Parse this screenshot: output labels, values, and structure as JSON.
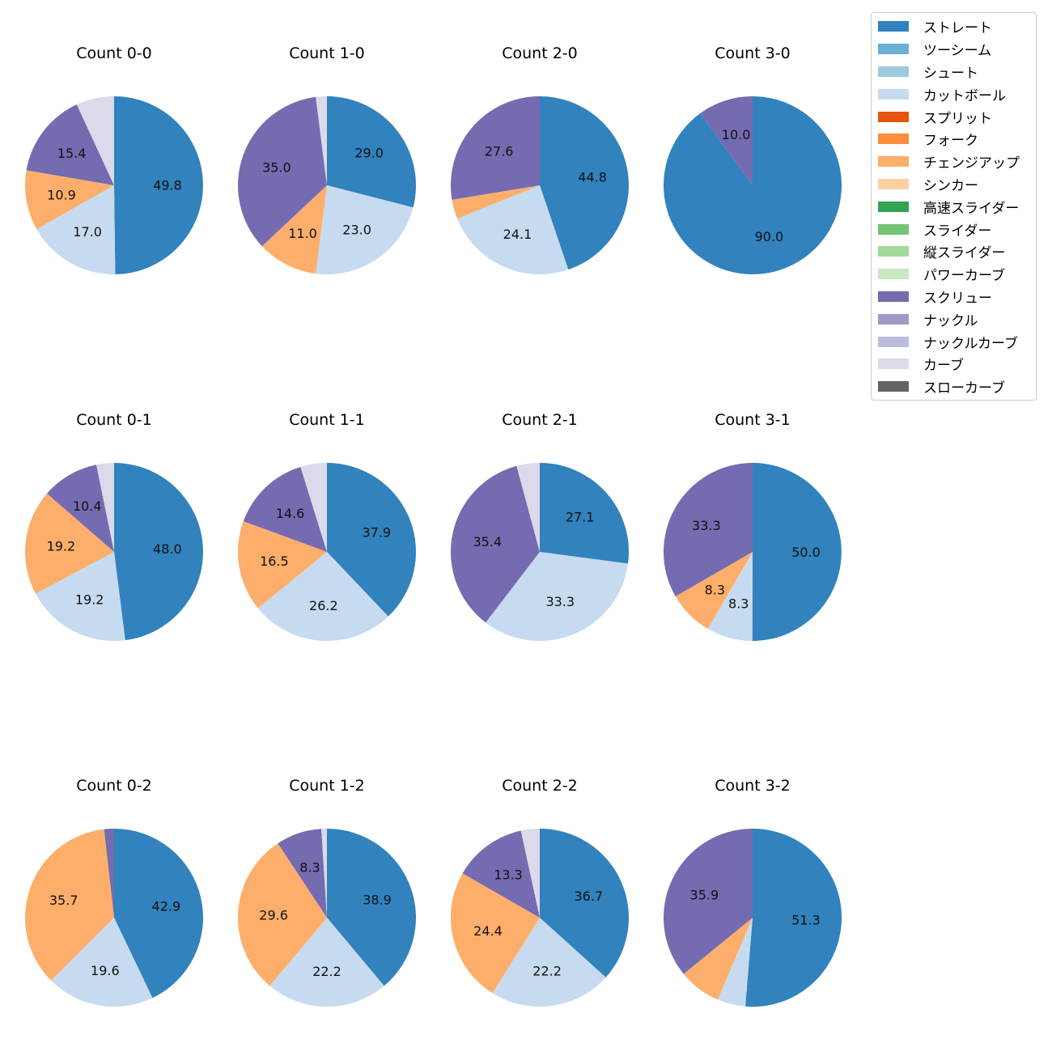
{
  "chart_data": {
    "type": "pie",
    "legend_position": "top-right",
    "legend": [
      {
        "name": "ストレート",
        "color": "#3182bd"
      },
      {
        "name": "ツーシーム",
        "color": "#6baed6"
      },
      {
        "name": "シュート",
        "color": "#9ecae1"
      },
      {
        "name": "カットボール",
        "color": "#c6dbef"
      },
      {
        "name": "スプリット",
        "color": "#e6550d"
      },
      {
        "name": "フォーク",
        "color": "#fd8d3c"
      },
      {
        "name": "チェンジアップ",
        "color": "#fdae6b"
      },
      {
        "name": "シンカー",
        "color": "#fdd0a2"
      },
      {
        "name": "高速スライダー",
        "color": "#31a354"
      },
      {
        "name": "スライダー",
        "color": "#74c476"
      },
      {
        "name": "縦スライダー",
        "color": "#a1d99b"
      },
      {
        "name": "パワーカーブ",
        "color": "#c7e9c0"
      },
      {
        "name": "スクリュー",
        "color": "#756bb1"
      },
      {
        "name": "ナックル",
        "color": "#9e9ac8"
      },
      {
        "name": "ナックルカーブ",
        "color": "#bcbddc"
      },
      {
        "name": "カーブ",
        "color": "#dadaeb"
      },
      {
        "name": "スローカーブ",
        "color": "#636363"
      }
    ],
    "charts": [
      {
        "title": "Count 0-0",
        "slices": [
          {
            "pitch": "ストレート",
            "value": 49.8,
            "label": "49.8"
          },
          {
            "pitch": "カットボール",
            "value": 17.0,
            "label": "17.0"
          },
          {
            "pitch": "チェンジアップ",
            "value": 10.9,
            "label": "10.9"
          },
          {
            "pitch": "スクリュー",
            "value": 15.4,
            "label": "15.4"
          },
          {
            "pitch": "カーブ",
            "value": 6.9,
            "label": ""
          }
        ]
      },
      {
        "title": "Count 1-0",
        "slices": [
          {
            "pitch": "ストレート",
            "value": 29.0,
            "label": "29.0"
          },
          {
            "pitch": "カットボール",
            "value": 23.0,
            "label": "23.0"
          },
          {
            "pitch": "チェンジアップ",
            "value": 11.0,
            "label": "11.0"
          },
          {
            "pitch": "スクリュー",
            "value": 35.0,
            "label": "35.0"
          },
          {
            "pitch": "カーブ",
            "value": 2.0,
            "label": ""
          }
        ]
      },
      {
        "title": "Count 2-0",
        "slices": [
          {
            "pitch": "ストレート",
            "value": 44.8,
            "label": "44.8"
          },
          {
            "pitch": "カットボール",
            "value": 24.1,
            "label": "24.1"
          },
          {
            "pitch": "チェンジアップ",
            "value": 3.5,
            "label": ""
          },
          {
            "pitch": "スクリュー",
            "value": 27.6,
            "label": "27.6"
          }
        ]
      },
      {
        "title": "Count 3-0",
        "slices": [
          {
            "pitch": "ストレート",
            "value": 90.0,
            "label": "90.0"
          },
          {
            "pitch": "スクリュー",
            "value": 10.0,
            "label": "10.0"
          }
        ]
      },
      {
        "title": "Count 0-1",
        "slices": [
          {
            "pitch": "ストレート",
            "value": 48.0,
            "label": "48.0"
          },
          {
            "pitch": "カットボール",
            "value": 19.2,
            "label": "19.2"
          },
          {
            "pitch": "チェンジアップ",
            "value": 19.2,
            "label": "19.2"
          },
          {
            "pitch": "スクリュー",
            "value": 10.4,
            "label": "10.4"
          },
          {
            "pitch": "カーブ",
            "value": 3.2,
            "label": ""
          }
        ]
      },
      {
        "title": "Count 1-1",
        "slices": [
          {
            "pitch": "ストレート",
            "value": 37.9,
            "label": "37.9"
          },
          {
            "pitch": "カットボール",
            "value": 26.2,
            "label": "26.2"
          },
          {
            "pitch": "チェンジアップ",
            "value": 16.5,
            "label": "16.5"
          },
          {
            "pitch": "スクリュー",
            "value": 14.6,
            "label": "14.6"
          },
          {
            "pitch": "カーブ",
            "value": 4.8,
            "label": ""
          }
        ]
      },
      {
        "title": "Count 2-1",
        "slices": [
          {
            "pitch": "ストレート",
            "value": 27.1,
            "label": "27.1"
          },
          {
            "pitch": "カットボール",
            "value": 33.3,
            "label": "33.3"
          },
          {
            "pitch": "スクリュー",
            "value": 35.4,
            "label": "35.4"
          },
          {
            "pitch": "カーブ",
            "value": 4.2,
            "label": ""
          }
        ]
      },
      {
        "title": "Count 3-1",
        "slices": [
          {
            "pitch": "ストレート",
            "value": 50.0,
            "label": "50.0"
          },
          {
            "pitch": "カットボール",
            "value": 8.3,
            "label": "8.3"
          },
          {
            "pitch": "チェンジアップ",
            "value": 8.3,
            "label": "8.3"
          },
          {
            "pitch": "スクリュー",
            "value": 33.3,
            "label": "33.3"
          }
        ]
      },
      {
        "title": "Count 0-2",
        "slices": [
          {
            "pitch": "ストレート",
            "value": 42.9,
            "label": "42.9"
          },
          {
            "pitch": "カットボール",
            "value": 19.6,
            "label": "19.6"
          },
          {
            "pitch": "チェンジアップ",
            "value": 35.7,
            "label": "35.7"
          },
          {
            "pitch": "スクリュー",
            "value": 1.8,
            "label": ""
          }
        ]
      },
      {
        "title": "Count 1-2",
        "slices": [
          {
            "pitch": "ストレート",
            "value": 38.9,
            "label": "38.9"
          },
          {
            "pitch": "カットボール",
            "value": 22.2,
            "label": "22.2"
          },
          {
            "pitch": "チェンジアップ",
            "value": 29.6,
            "label": "29.6"
          },
          {
            "pitch": "スクリュー",
            "value": 8.3,
            "label": "8.3"
          },
          {
            "pitch": "カーブ",
            "value": 1.0,
            "label": ""
          }
        ]
      },
      {
        "title": "Count 2-2",
        "slices": [
          {
            "pitch": "ストレート",
            "value": 36.7,
            "label": "36.7"
          },
          {
            "pitch": "カットボール",
            "value": 22.2,
            "label": "22.2"
          },
          {
            "pitch": "チェンジアップ",
            "value": 24.4,
            "label": "24.4"
          },
          {
            "pitch": "スクリュー",
            "value": 13.3,
            "label": "13.3"
          },
          {
            "pitch": "カーブ",
            "value": 3.4,
            "label": ""
          }
        ]
      },
      {
        "title": "Count 3-2",
        "slices": [
          {
            "pitch": "ストレート",
            "value": 51.3,
            "label": "51.3"
          },
          {
            "pitch": "カットボール",
            "value": 5.1,
            "label": ""
          },
          {
            "pitch": "チェンジアップ",
            "value": 7.7,
            "label": ""
          },
          {
            "pitch": "スクリュー",
            "value": 35.9,
            "label": "35.9"
          }
        ]
      }
    ]
  }
}
